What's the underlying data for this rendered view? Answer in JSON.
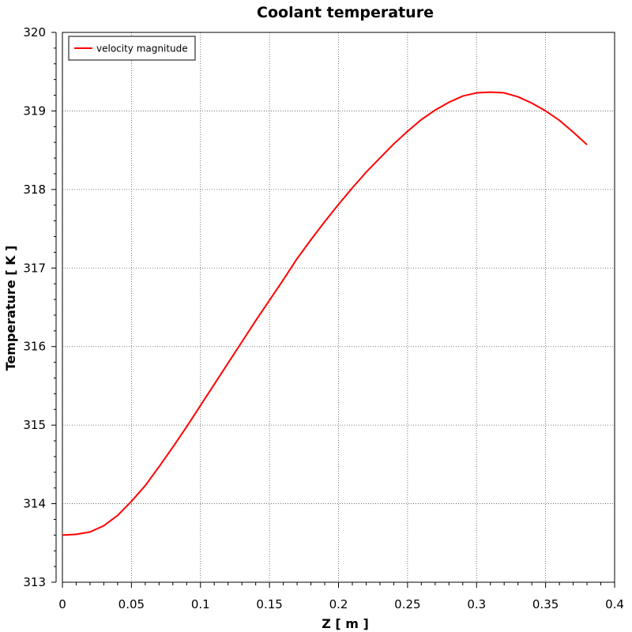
{
  "chart_data": {
    "type": "line",
    "title": "Coolant temperature",
    "xlabel": "Z [ m ]",
    "ylabel": "Temperature [ K ]",
    "xlim": [
      0,
      0.4
    ],
    "ylim": [
      313,
      320
    ],
    "xticks": [
      "0",
      "0.05",
      "0.1",
      "0.15",
      "0.2",
      "0.25",
      "0.3",
      "0.35",
      "0.4"
    ],
    "yticks": [
      "313",
      "314",
      "315",
      "316",
      "317",
      "318",
      "319",
      "320"
    ],
    "grid": true,
    "legend_position": "top-left",
    "series": [
      {
        "name": "velocity magnitude",
        "color": "#ff0000",
        "x": [
          0,
          0.01,
          0.02,
          0.03,
          0.04,
          0.05,
          0.06,
          0.07,
          0.08,
          0.09,
          0.1,
          0.11,
          0.12,
          0.13,
          0.14,
          0.15,
          0.16,
          0.17,
          0.18,
          0.19,
          0.2,
          0.21,
          0.22,
          0.23,
          0.24,
          0.25,
          0.26,
          0.27,
          0.28,
          0.29,
          0.3,
          0.31,
          0.32,
          0.33,
          0.34,
          0.35,
          0.36,
          0.37,
          0.38
        ],
        "y": [
          313.6,
          313.61,
          313.64,
          313.72,
          313.85,
          314.03,
          314.23,
          314.47,
          314.72,
          314.98,
          315.25,
          315.52,
          315.79,
          316.06,
          316.33,
          316.59,
          316.85,
          317.12,
          317.36,
          317.59,
          317.81,
          318.02,
          318.22,
          318.4,
          318.58,
          318.74,
          318.89,
          319.01,
          319.11,
          319.19,
          319.23,
          319.24,
          319.23,
          319.18,
          319.1,
          319.0,
          318.88,
          318.73,
          318.57
        ]
      }
    ]
  }
}
